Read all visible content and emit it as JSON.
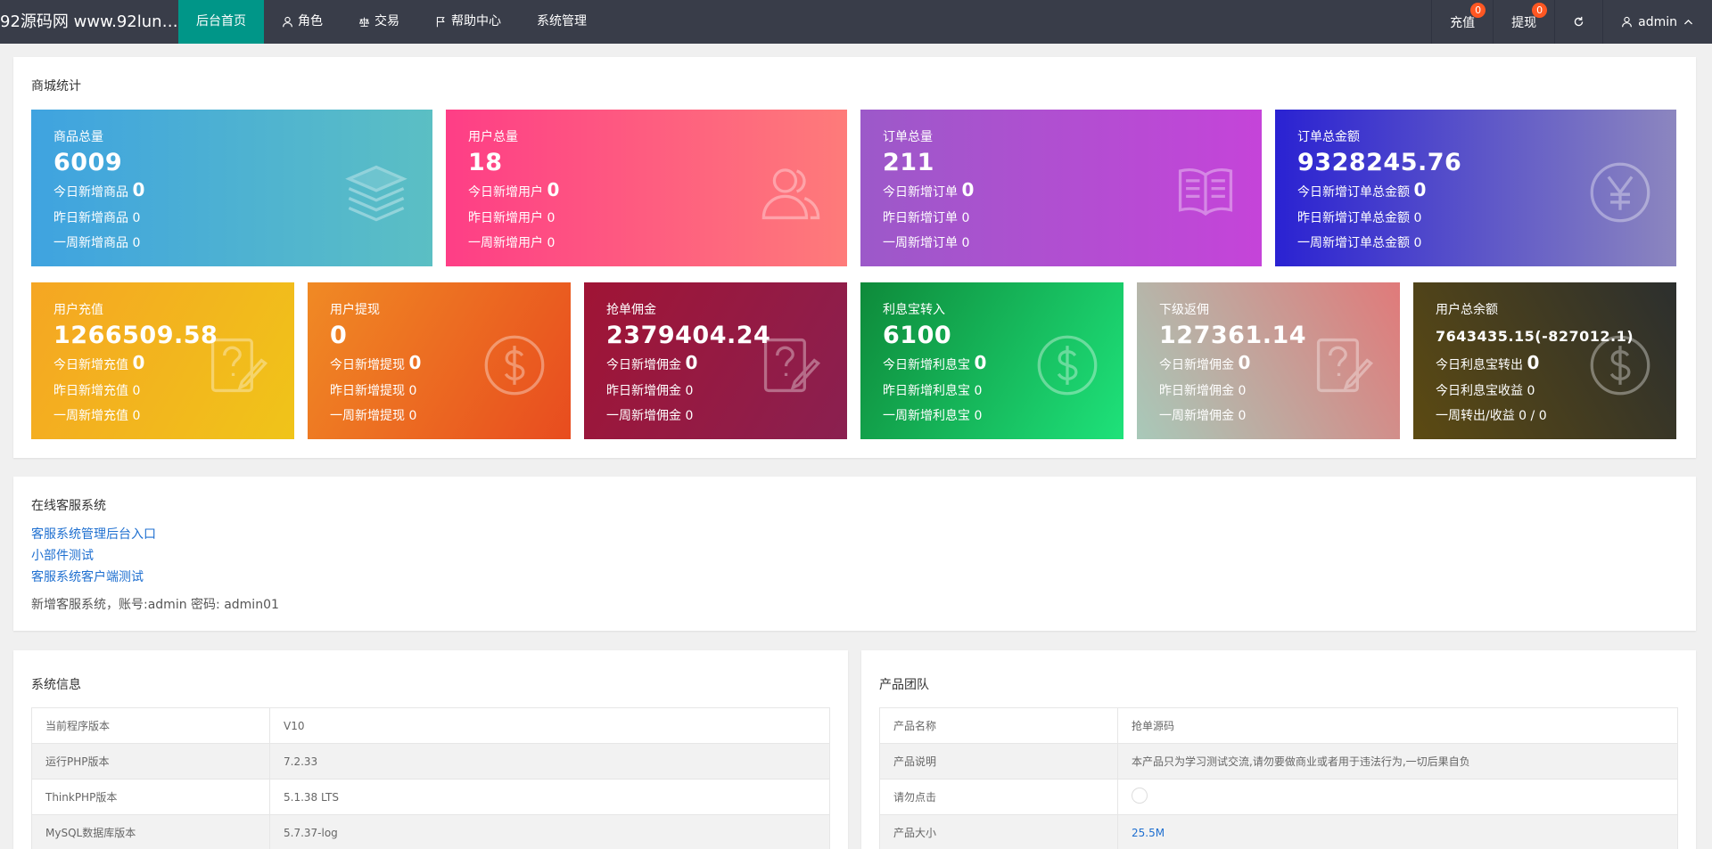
{
  "header": {
    "brand": "92源码网 www.92lunt...",
    "nav": [
      {
        "label": "后台首页",
        "icon": "none"
      },
      {
        "label": "角色",
        "icon": "user-icon"
      },
      {
        "label": "交易",
        "icon": "scale-icon"
      },
      {
        "label": "帮助中心",
        "icon": "flag-icon"
      },
      {
        "label": "系统管理",
        "icon": "none"
      }
    ],
    "right": {
      "recharge_label": "充值",
      "recharge_badge": "0",
      "withdraw_label": "提现",
      "withdraw_badge": "0",
      "user_label": "admin"
    }
  },
  "mall": {
    "title": "商城统计",
    "row1": [
      {
        "label": "商品总量",
        "value": "6009",
        "l1": "今日新增商品",
        "v1": "0",
        "l2": "昨日新增商品",
        "v2": "0",
        "l3": "一周新增商品",
        "v3": "0",
        "icon": "layers-icon",
        "gradient": "linear-gradient(90deg,#3fa3e0,#5bbfc4)"
      },
      {
        "label": "用户总量",
        "value": "18",
        "l1": "今日新增用户",
        "v1": "0",
        "l2": "昨日新增用户",
        "v2": "0",
        "l3": "一周新增用户",
        "v3": "0",
        "icon": "users-icon",
        "gradient": "linear-gradient(90deg,#fe3e86,#fe7b7a)"
      },
      {
        "label": "订单总量",
        "value": "211",
        "l1": "今日新增订单",
        "v1": "0",
        "l2": "昨日新增订单",
        "v2": "0",
        "l3": "一周新增订单",
        "v3": "0",
        "icon": "book-icon",
        "gradient": "linear-gradient(90deg,#9c59c9,#c544d9)"
      },
      {
        "label": "订单总金额",
        "value": "9328245.76",
        "l1": "今日新增订单总金额",
        "v1": "0",
        "l2": "昨日新增订单总金额",
        "v2": "0",
        "l3": "一周新增订单总金额",
        "v3": "0",
        "icon": "yen-icon",
        "gradient": "linear-gradient(90deg,#2a22d2,#8c86bf)"
      }
    ],
    "row2": [
      {
        "label": "用户充值",
        "value": "1266509.58",
        "l1": "今日新增充值",
        "v1": "0",
        "l2": "昨日新增充值",
        "v2": "0",
        "l3": "一周新增充值",
        "v3": "0",
        "icon": "question-note-icon",
        "gradient": "linear-gradient(120deg,#f5a623,#f0c419)"
      },
      {
        "label": "用户提现",
        "value": "0",
        "l1": "今日新增提现",
        "v1": "0",
        "l2": "昨日新增提现",
        "v2": "0",
        "l3": "一周新增提现",
        "v3": "0",
        "icon": "dollar-icon",
        "gradient": "linear-gradient(120deg,#f08a24,#e84c1f)"
      },
      {
        "label": "抢单佣金",
        "value": "2379404.24",
        "l1": "今日新增佣金",
        "v1": "0",
        "l2": "昨日新增佣金",
        "v2": "0",
        "l3": "一周新增佣金",
        "v3": "0",
        "icon": "question-note-icon",
        "gradient": "linear-gradient(120deg,#a01435,#8a2050)"
      },
      {
        "label": "利息宝转入",
        "value": "6100",
        "l1": "今日新增利息宝",
        "v1": "0",
        "l2": "昨日新增利息宝",
        "v2": "0",
        "l3": "一周新增利息宝",
        "v3": "0",
        "icon": "dollar-icon",
        "gradient": "linear-gradient(120deg,#0e8a3a,#1ee27a)"
      },
      {
        "label": "下级返佣",
        "value": "127361.14",
        "l1": "今日新增佣金",
        "v1": "0",
        "l2": "昨日新增佣金",
        "v2": "0",
        "l3": "一周新增佣金",
        "v3": "0",
        "icon": "question-note-icon",
        "gradient": "linear-gradient(60deg,#a8c9b9,#e07a7a)"
      },
      {
        "label": "用户总余额",
        "value": "7643435.15(-827012.1)",
        "l1": "今日利息宝转出",
        "v1": "0",
        "l2": "今日利息宝收益",
        "v2": "0",
        "l3": "一周转出/收益",
        "v3": "0 / 0",
        "icon": "dollar-icon",
        "gradient": "linear-gradient(60deg,#5c4a12,#2c2f2e)"
      }
    ]
  },
  "service": {
    "title": "在线客服系统",
    "links": [
      "客服系统管理后台入口",
      "小部件测试",
      "客服系统客户端测试"
    ],
    "note": "新增客服系统，账号:admin 密码: admin01"
  },
  "sysinfo": {
    "title": "系统信息",
    "rows": [
      [
        "当前程序版本",
        "V10"
      ],
      [
        "运行PHP版本",
        "7.2.33"
      ],
      [
        "ThinkPHP版本",
        "5.1.38 LTS"
      ],
      [
        "MySQL数据库版本",
        "5.7.37-log"
      ]
    ]
  },
  "team": {
    "title": "产品团队",
    "rows": [
      [
        "产品名称",
        "抢单源码"
      ],
      [
        "产品说明",
        "本产品只为学习测试交流,请勿要做商业或者用于违法行为,一切后果自负"
      ],
      [
        "请勿点击",
        ""
      ],
      [
        "产品大小",
        "25.5M"
      ]
    ]
  }
}
